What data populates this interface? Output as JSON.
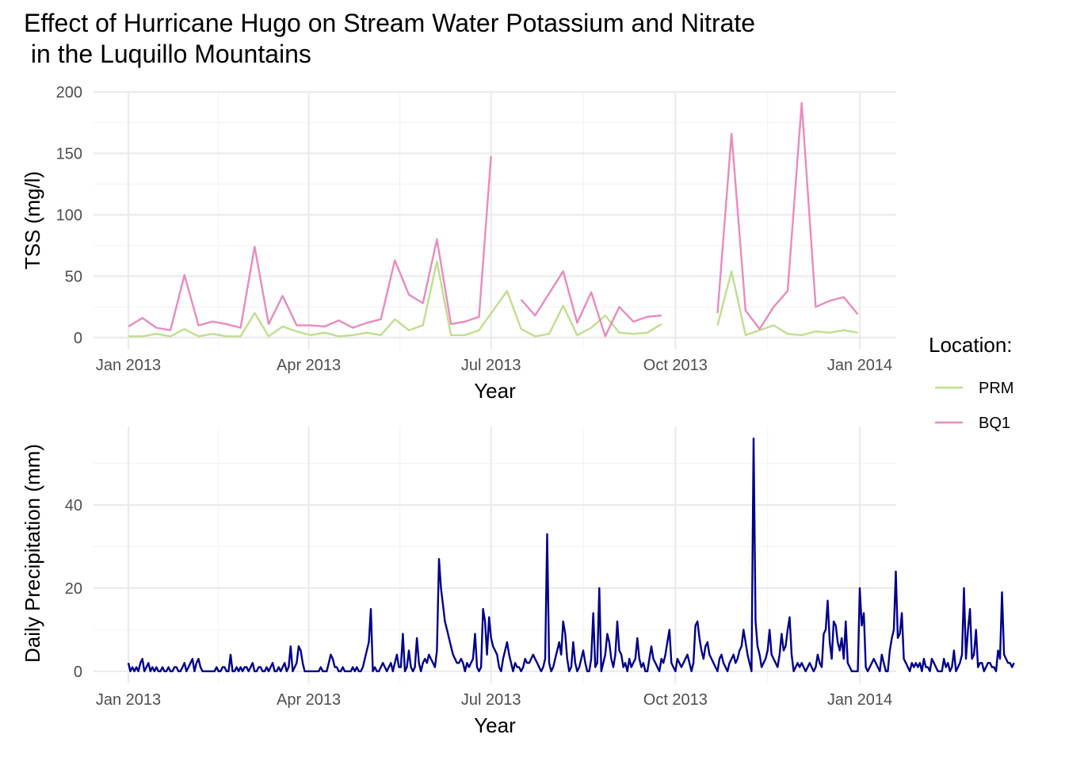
{
  "title_line1": "Effect of Hurricane Hugo on Stream Water Potassium and Nitrate",
  "title_line2": " in the Luquillo Mountains",
  "legend": {
    "title": "Location:",
    "items": [
      {
        "label": "PRM",
        "color": "#bfdf8d"
      },
      {
        "label": "BQ1",
        "color": "#e98bbd"
      }
    ]
  },
  "precip_color": "#00008b",
  "chart_data": [
    {
      "type": "line",
      "xlabel": "Year",
      "ylabel": "TSS (mg/l)",
      "xlim": [
        "2013-01-01",
        "2014-01-01"
      ],
      "ylim": [
        0,
        200
      ],
      "xticks": [
        {
          "date": "2013-01-01",
          "label": "Jan 2013"
        },
        {
          "date": "2013-04-01",
          "label": "Apr 2013"
        },
        {
          "date": "2013-07-01",
          "label": "Jul 2013"
        },
        {
          "date": "2013-10-01",
          "label": "Oct 2013"
        },
        {
          "date": "2014-01-01",
          "label": "Jan 2014"
        }
      ],
      "yticks": [
        0,
        50,
        100,
        150,
        200
      ],
      "grid": true,
      "legend_position": "right",
      "series": [
        {
          "name": "PRM",
          "color": "#bfdf8d",
          "points": [
            [
              "2013-01-01",
              1
            ],
            [
              "2013-01-08",
              1
            ],
            [
              "2013-01-15",
              3
            ],
            [
              "2013-01-22",
              1
            ],
            [
              "2013-01-29",
              7
            ],
            [
              "2013-02-05",
              1
            ],
            [
              "2013-02-12",
              3
            ],
            [
              "2013-02-19",
              1
            ],
            [
              "2013-02-26",
              1
            ],
            [
              "2013-03-05",
              20
            ],
            [
              "2013-03-12",
              1
            ],
            [
              "2013-03-19",
              9
            ],
            [
              "2013-03-26",
              5
            ],
            [
              "2013-04-02",
              2
            ],
            [
              "2013-04-09",
              4
            ],
            [
              "2013-04-16",
              1
            ],
            [
              "2013-04-23",
              2
            ],
            [
              "2013-04-30",
              4
            ],
            [
              "2013-05-07",
              2
            ],
            [
              "2013-05-14",
              15
            ],
            [
              "2013-05-21",
              6
            ],
            [
              "2013-05-28",
              10
            ],
            [
              "2013-06-04",
              62
            ],
            [
              "2013-06-11",
              2
            ],
            [
              "2013-06-18",
              2
            ],
            [
              "2013-06-25",
              6
            ],
            [
              "2013-07-09",
              38
            ],
            [
              "2013-07-16",
              7
            ],
            [
              "2013-07-23",
              1
            ],
            [
              "2013-07-30",
              3
            ],
            [
              "2013-08-06",
              26
            ],
            [
              "2013-08-13",
              2
            ],
            [
              "2013-08-20",
              8
            ],
            [
              "2013-08-27",
              18
            ],
            [
              "2013-09-03",
              4
            ],
            [
              "2013-09-10",
              3
            ],
            [
              "2013-09-17",
              4
            ],
            [
              "2013-09-24",
              11
            ],
            [
              null,
              null
            ],
            [
              "2013-10-22",
              10
            ],
            [
              "2013-10-29",
              54
            ],
            [
              "2013-11-05",
              2
            ],
            [
              "2013-11-12",
              6
            ],
            [
              "2013-11-19",
              10
            ],
            [
              "2013-11-26",
              3
            ],
            [
              "2013-12-03",
              2
            ],
            [
              "2013-12-10",
              5
            ],
            [
              "2013-12-17",
              4
            ],
            [
              "2013-12-24",
              6
            ],
            [
              "2013-12-31",
              4
            ]
          ]
        },
        {
          "name": "BQ1",
          "color": "#e98bbd",
          "points": [
            [
              "2013-01-01",
              9
            ],
            [
              "2013-01-08",
              16
            ],
            [
              "2013-01-15",
              8
            ],
            [
              "2013-01-22",
              6
            ],
            [
              "2013-01-29",
              51
            ],
            [
              "2013-02-05",
              10
            ],
            [
              "2013-02-12",
              13
            ],
            [
              "2013-02-19",
              11
            ],
            [
              "2013-02-26",
              8
            ],
            [
              "2013-03-05",
              74
            ],
            [
              "2013-03-12",
              11
            ],
            [
              "2013-03-19",
              34
            ],
            [
              "2013-03-26",
              10
            ],
            [
              "2013-04-02",
              10
            ],
            [
              "2013-04-09",
              9
            ],
            [
              "2013-04-16",
              14
            ],
            [
              "2013-04-23",
              8
            ],
            [
              "2013-04-30",
              12
            ],
            [
              "2013-05-07",
              15
            ],
            [
              "2013-05-14",
              63
            ],
            [
              "2013-05-21",
              35
            ],
            [
              "2013-05-28",
              28
            ],
            [
              "2013-06-04",
              80
            ],
            [
              "2013-06-11",
              11
            ],
            [
              "2013-06-18",
              13
            ],
            [
              "2013-06-25",
              17
            ],
            [
              "2013-07-01",
              148
            ],
            [
              null,
              null
            ],
            [
              "2013-07-16",
              31
            ],
            [
              "2013-07-23",
              18
            ],
            [
              "2013-07-30",
              36
            ],
            [
              "2013-08-06",
              54
            ],
            [
              "2013-08-13",
              12
            ],
            [
              "2013-08-20",
              37
            ],
            [
              "2013-08-27",
              1
            ],
            [
              "2013-09-03",
              25
            ],
            [
              "2013-09-10",
              13
            ],
            [
              "2013-09-17",
              17
            ],
            [
              "2013-09-24",
              18
            ],
            [
              null,
              null
            ],
            [
              "2013-10-22",
              20
            ],
            [
              "2013-10-29",
              166
            ],
            [
              "2013-11-05",
              22
            ],
            [
              "2013-11-12",
              7
            ],
            [
              "2013-11-19",
              25
            ],
            [
              "2013-11-26",
              38
            ],
            [
              "2013-12-03",
              191
            ],
            [
              "2013-12-10",
              25
            ],
            [
              "2013-12-17",
              30
            ],
            [
              "2013-12-24",
              33
            ],
            [
              "2013-12-31",
              19
            ]
          ]
        }
      ]
    },
    {
      "type": "line",
      "xlabel": "Year",
      "ylabel": "Daily Precipitation (mm)",
      "xlim": [
        "2013-01-01",
        "2014-01-01"
      ],
      "ylim": [
        -2.9,
        58.9
      ],
      "xticks": [
        {
          "date": "2013-01-01",
          "label": "Jan 2013"
        },
        {
          "date": "2013-04-01",
          "label": "Apr 2013"
        },
        {
          "date": "2013-07-01",
          "label": "Jul 2013"
        },
        {
          "date": "2013-10-01",
          "label": "Oct 2013"
        },
        {
          "date": "2014-01-01",
          "label": "Jan 2014"
        }
      ],
      "yticks": [
        0,
        20,
        40
      ],
      "grid": true,
      "series": [
        {
          "color": "#00008b",
          "start_date": "2013-01-01",
          "daily_values": [
            2,
            0,
            1,
            0,
            1,
            0,
            2,
            3,
            0,
            1,
            2,
            0,
            1,
            0,
            1,
            0,
            0,
            1,
            0,
            0,
            1,
            0,
            0,
            1,
            1,
            0,
            0,
            1,
            2,
            0,
            1,
            2,
            3,
            0,
            2,
            3,
            1,
            0,
            0,
            0,
            0,
            0,
            0,
            0,
            1,
            0,
            0,
            1,
            1,
            0,
            0,
            4,
            0,
            0,
            1,
            0,
            1,
            0,
            1,
            1,
            0,
            1,
            2,
            0,
            0,
            1,
            1,
            0,
            0,
            1,
            0,
            1,
            2,
            0,
            0,
            1,
            0,
            1,
            2,
            0,
            1,
            6,
            0,
            1,
            2,
            6,
            5,
            2,
            0,
            0,
            0,
            0,
            0,
            0,
            0,
            0,
            1,
            0,
            0,
            0,
            2,
            4,
            3,
            1,
            1,
            0,
            0,
            1,
            0,
            0,
            0,
            0,
            1,
            0,
            1,
            0,
            0,
            1,
            3,
            5,
            7,
            15,
            0,
            1,
            0,
            0,
            1,
            2,
            1,
            0,
            1,
            2,
            0,
            2,
            4,
            1,
            1,
            9,
            0,
            1,
            5,
            1,
            0,
            1,
            8,
            2,
            0,
            2,
            3,
            2,
            4,
            3,
            2,
            1,
            5,
            27,
            20,
            16,
            12,
            10,
            8,
            6,
            4,
            3,
            2,
            2,
            3,
            2,
            0,
            2,
            1,
            2,
            3,
            9,
            1,
            0,
            1,
            15,
            12,
            4,
            13,
            8,
            6,
            5,
            4,
            1,
            0,
            3,
            5,
            7,
            4,
            2,
            0,
            2,
            1,
            1,
            0,
            1,
            3,
            2,
            2,
            3,
            4,
            3,
            2,
            1,
            0,
            1,
            3,
            33,
            2,
            0,
            1,
            3,
            5,
            7,
            4,
            12,
            9,
            3,
            0,
            1,
            7,
            2,
            0,
            1,
            3,
            5,
            2,
            0,
            0,
            3,
            14,
            1,
            2,
            20,
            0,
            2,
            4,
            9,
            7,
            3,
            1,
            4,
            12,
            5,
            4,
            1,
            2,
            0,
            3,
            1,
            2,
            3,
            8,
            3,
            1,
            2,
            0,
            0,
            3,
            6,
            3,
            2,
            1,
            0,
            3,
            2,
            4,
            7,
            10,
            2,
            1,
            0,
            3,
            2,
            1,
            2,
            3,
            4,
            2,
            0,
            2,
            11,
            12,
            8,
            5,
            3,
            6,
            7,
            4,
            3,
            2,
            1,
            0,
            3,
            4,
            2,
            1,
            0,
            2,
            3,
            4,
            2,
            3,
            5,
            6,
            10,
            7,
            4,
            2,
            0,
            56,
            12,
            6,
            4,
            1,
            2,
            3,
            5,
            10,
            4,
            3,
            2,
            1,
            4,
            9,
            5,
            6,
            10,
            13,
            4,
            0,
            1,
            2,
            1,
            2,
            1,
            0,
            1,
            2,
            1,
            0,
            1,
            4,
            2,
            1,
            9,
            10,
            17,
            7,
            3,
            12,
            11,
            7,
            5,
            8,
            3,
            12,
            2,
            1,
            0,
            0,
            0,
            0,
            20,
            11,
            14,
            1,
            0,
            1,
            2,
            3,
            2,
            1,
            0,
            4,
            2,
            0,
            0,
            5,
            8,
            10,
            24,
            8,
            9,
            14,
            3,
            2,
            1,
            0,
            2,
            1,
            2,
            1,
            2,
            0,
            3,
            1,
            1,
            0,
            3,
            2,
            1,
            0,
            0,
            0,
            3,
            1,
            2,
            0,
            1,
            5,
            0,
            1,
            2,
            4,
            20,
            3,
            10,
            15,
            3,
            4,
            10,
            1,
            2,
            2,
            0,
            1,
            2,
            2,
            1,
            1,
            0,
            5,
            3,
            19,
            4,
            3,
            2,
            2,
            1,
            2
          ]
        }
      ]
    }
  ]
}
